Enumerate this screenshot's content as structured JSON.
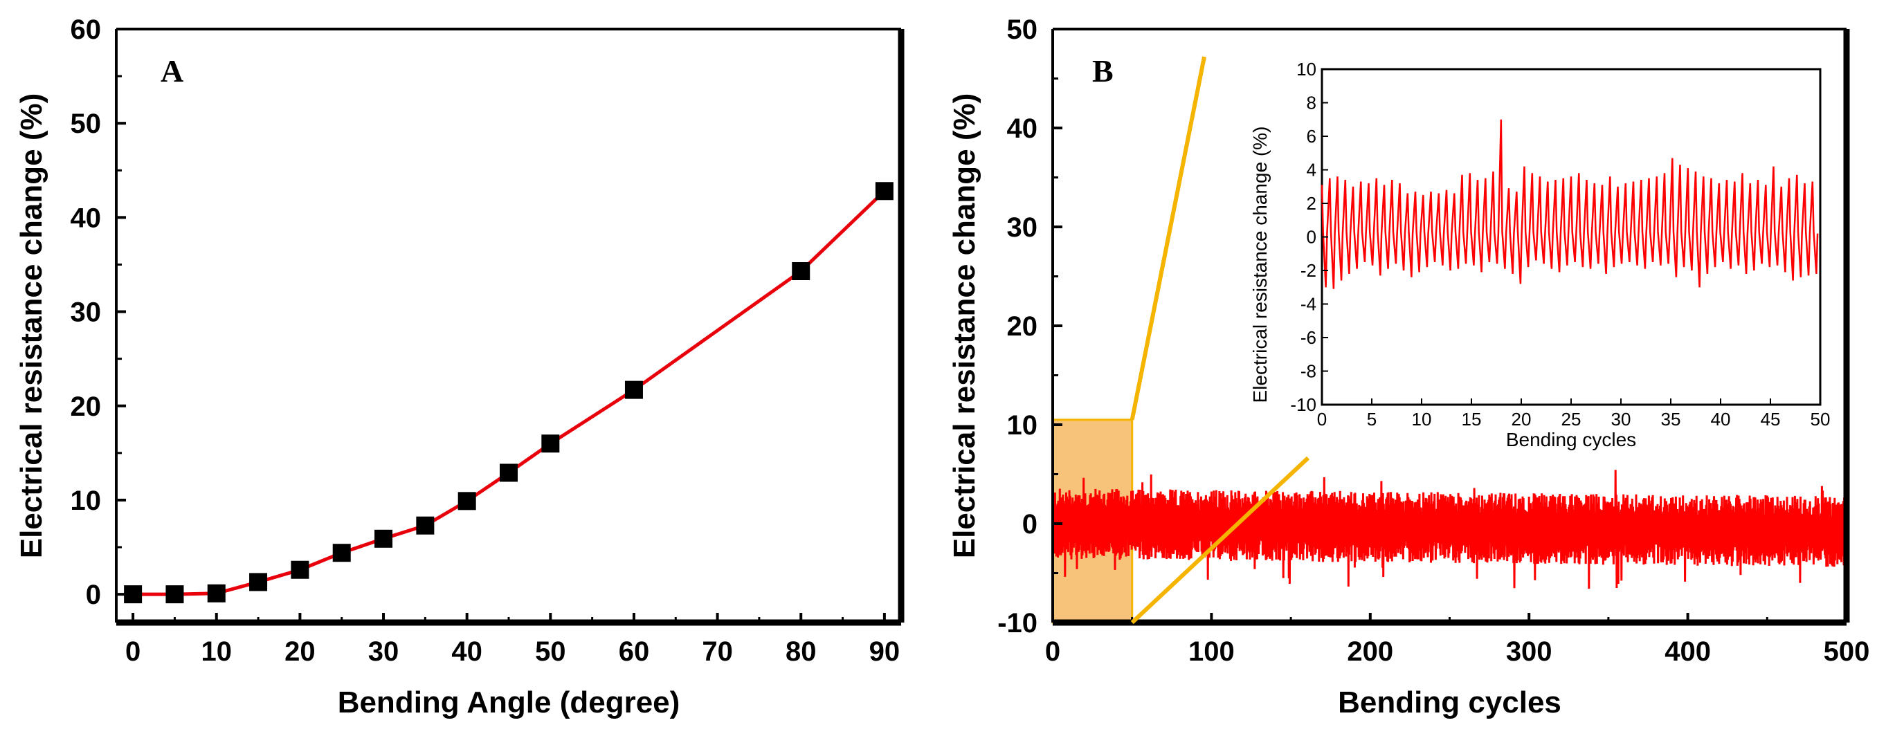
{
  "chart_data": [
    {
      "panel": "A",
      "type": "line",
      "xlabel": "Bending Angle (degree)",
      "ylabel": "Electrical resistance change (%)",
      "xlim": [
        -2,
        92
      ],
      "ylim": [
        -3,
        60
      ],
      "xticks": [
        0,
        10,
        20,
        30,
        40,
        50,
        60,
        70,
        80,
        90
      ],
      "yticks": [
        0,
        10,
        20,
        30,
        40,
        50,
        60
      ],
      "line_color": "#e8000b",
      "marker_color": "#000000",
      "marker": "square",
      "x": [
        0,
        5,
        10,
        15,
        20,
        25,
        30,
        35,
        40,
        45,
        50,
        60,
        80,
        90
      ],
      "y": [
        0,
        0,
        0.1,
        1.3,
        2.6,
        4.4,
        5.9,
        7.3,
        9.9,
        12.9,
        16,
        21.7,
        34.3,
        42.8
      ]
    },
    {
      "panel": "B",
      "type": "line",
      "xlabel": "Bending cycles",
      "ylabel": "Electrical resistance change (%)",
      "xlim": [
        0,
        500
      ],
      "ylim": [
        -10,
        50
      ],
      "xticks": [
        0,
        100,
        200,
        300,
        400,
        500
      ],
      "yticks": [
        -10,
        0,
        10,
        20,
        30,
        40,
        50
      ],
      "line_color": "#ff0000",
      "signal_description_values": {
        "baseline": 0,
        "amplitude": 3.2,
        "cycles": 500,
        "samples_per_cycle": 4
      },
      "zoom_region": {
        "x": [
          0,
          50
        ],
        "y": [
          -10,
          10.5
        ],
        "fill": "#f7c27a",
        "stroke": "#f4b400"
      },
      "inset": {
        "xlabel": "Bending cycles",
        "ylabel": "Electrical resistance change (%)",
        "xlim": [
          0,
          50
        ],
        "ylim": [
          -10,
          10
        ],
        "xticks": [
          0,
          5,
          10,
          15,
          20,
          25,
          30,
          35,
          40,
          45,
          50
        ],
        "yticks": [
          -10,
          -8,
          -6,
          -4,
          -2,
          0,
          2,
          4,
          6,
          8,
          10
        ],
        "peaks": [
          3.1,
          3.5,
          3.6,
          3.4,
          3.0,
          3.3,
          3.2,
          3.5,
          3.1,
          3.4,
          3.2,
          2.6,
          2.7,
          2.5,
          2.7,
          2.6,
          2.8,
          2.6,
          3.7,
          3.8,
          3.4,
          3.5,
          3.9,
          7.0,
          2.9,
          2.7,
          4.2,
          3.8,
          3.6,
          3.3,
          3.4,
          3.5,
          3.6,
          3.8,
          3.4,
          3.2,
          3.1,
          3.6,
          3.0,
          3.2,
          3.3,
          3.4,
          3.5,
          3.6,
          3.8,
          4.7,
          4.3,
          4.1,
          3.9,
          3.6,
          3.5,
          3.2,
          3.4,
          3.3,
          3.8,
          3.2,
          3.4,
          3.1,
          4.2,
          3.0,
          3.5,
          3.7,
          3.2,
          3.3
        ],
        "troughs": [
          -3.0,
          -3.1,
          -2.6,
          -2.2,
          -1.9,
          -1.5,
          -1.7,
          -2.3,
          -1.9,
          -1.6,
          -2.0,
          -2.4,
          -2.1,
          -1.8,
          -1.5,
          -1.7,
          -2.0,
          -1.9,
          -1.6,
          -1.7,
          -2.1,
          -1.5,
          -1.6,
          -1.9,
          -2.2,
          -2.8,
          -1.8,
          -1.4,
          -1.6,
          -1.9,
          -2.1,
          -1.7,
          -1.5,
          -1.8,
          -1.9,
          -1.6,
          -2.2,
          -1.8,
          -1.6,
          -1.5,
          -1.7,
          -1.9,
          -1.5,
          -1.7,
          -1.6,
          -2.4,
          -1.8,
          -2.0,
          -3.0,
          -2.2,
          -1.8,
          -1.5,
          -1.9,
          -1.7,
          -2.2,
          -2.0,
          -1.6,
          -1.8,
          -1.7,
          -2.1,
          -2.6,
          -2.4,
          -2.3,
          -2.2
        ]
      }
    }
  ],
  "panel_a_label": "A",
  "panel_b_label": "B"
}
